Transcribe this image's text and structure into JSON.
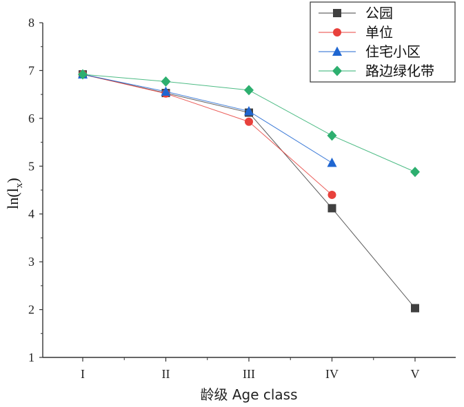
{
  "chart_data": {
    "type": "line",
    "xlabel": "龄级 Age class",
    "ylabel": "ln(l",
    "ylabel_sub": "x",
    "ylabel_close": ")",
    "categories": [
      "I",
      "II",
      "III",
      "IV",
      "V"
    ],
    "ylim": [
      1,
      8
    ],
    "yticks": [
      1,
      2,
      3,
      4,
      5,
      6,
      7,
      8
    ],
    "legend_position": "top-right",
    "series": [
      {
        "name": "公园",
        "color": "#404040",
        "marker": "square",
        "values": [
          6.92,
          6.53,
          6.12,
          4.12,
          2.03
        ]
      },
      {
        "name": "单位",
        "color": "#e8413c",
        "marker": "circle",
        "values": [
          6.92,
          6.52,
          5.93,
          4.4,
          null
        ]
      },
      {
        "name": "住宅小区",
        "color": "#1f66d1",
        "marker": "triangle",
        "values": [
          6.92,
          6.56,
          6.15,
          5.07,
          null
        ]
      },
      {
        "name": "路边绿化带",
        "color": "#2daf6f",
        "marker": "diamond",
        "values": [
          6.92,
          6.77,
          6.59,
          5.64,
          4.88
        ]
      }
    ]
  }
}
